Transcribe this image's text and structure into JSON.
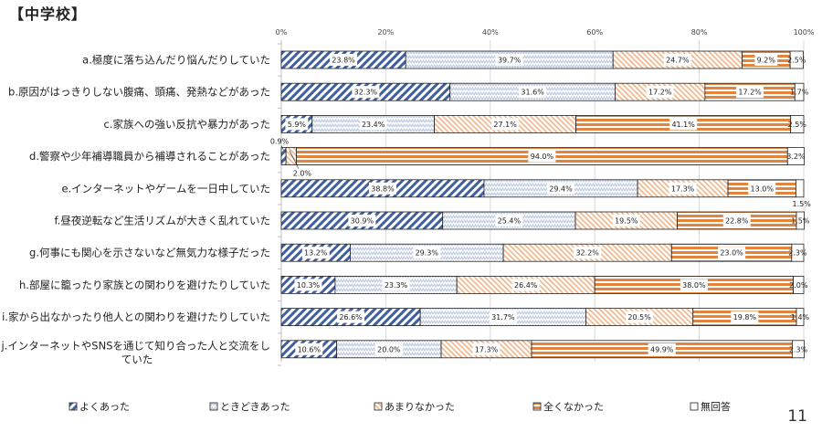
{
  "title": "【中学校】",
  "page_number": "11",
  "colors": {
    "yoku": "#3f5f9e",
    "tokidoki": "#b8c7e0",
    "amari": "#f0b487",
    "mattaku": "#e2843c",
    "muto": "#ffffff",
    "border": "#222222",
    "grid": "#d9d9d9"
  },
  "chart_data": {
    "type": "bar",
    "orientation": "horizontal",
    "stacked": "percent",
    "title": "【中学校】",
    "xlabel": "",
    "ylabel": "",
    "xlim": [
      0,
      100
    ],
    "x_ticks": [
      "0%",
      "20%",
      "40%",
      "60%",
      "80%",
      "100%"
    ],
    "grid": true,
    "legend_position": "bottom",
    "categories": [
      "a.極度に落ち込んだり悩んだりしていた",
      "b.原因がはっきりしない腹痛、頭痛、発熱などがあった",
      "c.家族への強い反抗や暴力があった",
      "d.警察や少年補導職員から補導されることがあった",
      "e.インターネットやゲームを一日中していた",
      "f.昼夜逆転など生活リズムが大きく乱れていた",
      "g.何事にも関心を示さないなど無気力な様子だった",
      "h.部屋に籠ったり家族との関わりを避けたりしていた",
      "i.家から出なかったり他人との関わりを避けたりしていた",
      "j.インターネットやSNSを通じて知り合った人と交流をしていた"
    ],
    "series": [
      {
        "name": "よくあった",
        "values": [
          23.8,
          32.3,
          5.9,
          0.9,
          38.8,
          30.9,
          13.2,
          10.3,
          26.6,
          10.6
        ]
      },
      {
        "name": "ときどきあった",
        "values": [
          39.7,
          31.6,
          23.4,
          0.0,
          29.4,
          25.4,
          29.3,
          23.3,
          31.7,
          20.0
        ]
      },
      {
        "name": "あまりなかった",
        "values": [
          24.7,
          17.2,
          27.1,
          2.0,
          17.3,
          19.5,
          32.2,
          26.4,
          20.5,
          17.3
        ]
      },
      {
        "name": "全くなかった",
        "values": [
          9.2,
          17.2,
          41.1,
          94.0,
          13.0,
          22.8,
          23.0,
          38.0,
          19.8,
          49.9
        ]
      },
      {
        "name": "無回答",
        "values": [
          2.5,
          1.7,
          2.5,
          3.2,
          1.5,
          1.5,
          2.3,
          2.0,
          1.4,
          2.3
        ]
      }
    ],
    "data_labels": [
      [
        "23.8%",
        "39.7%",
        "24.7%",
        "9.2%",
        "2.5%"
      ],
      [
        "32.3%",
        "31.6%",
        "17.2%",
        "17.2%",
        "1.7%"
      ],
      [
        "5.9%",
        "23.4%",
        "27.1%",
        "41.1%",
        "2.5%"
      ],
      [
        "0.9%",
        "",
        "2.0%",
        "94.0%",
        "3.2%"
      ],
      [
        "38.8%",
        "29.4%",
        "17.3%",
        "13.0%",
        "1.5%"
      ],
      [
        "30.9%",
        "25.4%",
        "19.5%",
        "22.8%",
        "1.5%"
      ],
      [
        "13.2%",
        "29.3%",
        "32.2%",
        "23.0%",
        "2.3%"
      ],
      [
        "10.3%",
        "23.3%",
        "26.4%",
        "38.0%",
        "2.0%"
      ],
      [
        "26.6%",
        "31.7%",
        "20.5%",
        "19.8%",
        "1.4%"
      ],
      [
        "10.6%",
        "20.0%",
        "17.3%",
        "49.9%",
        "2.3%"
      ]
    ]
  }
}
